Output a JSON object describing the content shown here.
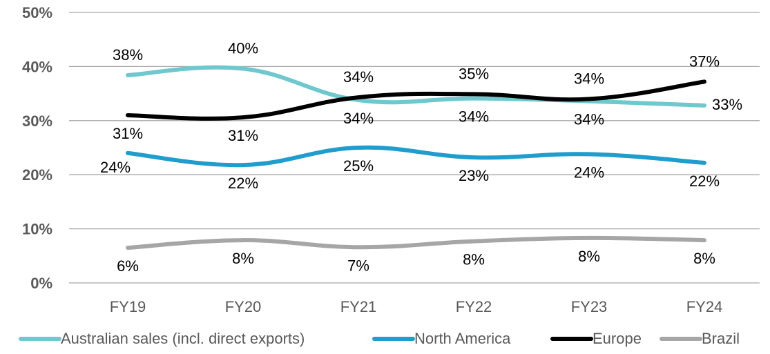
{
  "chart_data": {
    "type": "line",
    "categories": [
      "FY19",
      "FY20",
      "FY21",
      "FY22",
      "FY23",
      "FY24"
    ],
    "ylim": [
      0,
      50
    ],
    "yticks": [
      "0%",
      "10%",
      "20%",
      "30%",
      "40%",
      "50%"
    ],
    "grid": true,
    "legend_position": "bottom",
    "series": [
      {
        "name": "Australian sales (incl. direct exports)",
        "color": "#6ec8cd",
        "values": [
          38.4,
          39.6,
          33.8,
          34.1,
          33.6,
          32.8
        ],
        "labels": [
          "38%",
          "40%",
          "34%",
          "34%",
          "34%",
          "33%"
        ],
        "label_pos": [
          "above",
          "above",
          "below",
          "below",
          "below",
          "right"
        ]
      },
      {
        "name": "North America",
        "color": "#1f9dcc",
        "values": [
          24.0,
          21.8,
          25.0,
          23.2,
          23.8,
          22.2
        ],
        "labels": [
          "24%",
          "22%",
          "25%",
          "23%",
          "24%",
          "22%"
        ],
        "label_pos": [
          "below-left",
          "below",
          "below",
          "below",
          "below",
          "below"
        ]
      },
      {
        "name": "Europe",
        "color": "#000000",
        "values": [
          31.0,
          30.6,
          34.3,
          34.9,
          34.0,
          37.2
        ],
        "labels": [
          "31%",
          "31%",
          "34%",
          "35%",
          "34%",
          "37%"
        ],
        "label_pos": [
          "below",
          "below",
          "above",
          "above",
          "above",
          "above"
        ]
      },
      {
        "name": "Brazil",
        "color": "#a6a6a6",
        "values": [
          6.5,
          7.9,
          6.6,
          7.7,
          8.3,
          7.9
        ],
        "labels": [
          "6%",
          "8%",
          "7%",
          "8%",
          "8%",
          "8%"
        ],
        "label_pos": [
          "below",
          "below",
          "below",
          "below",
          "below",
          "below"
        ]
      }
    ]
  }
}
